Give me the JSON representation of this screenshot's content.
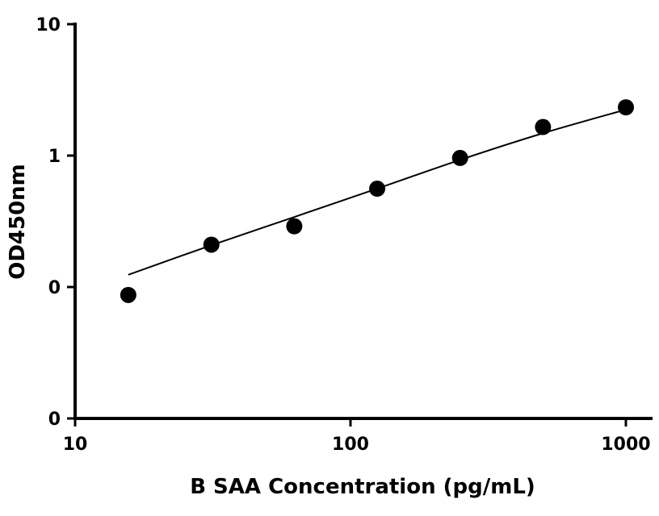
{
  "chart_data": {
    "type": "scatter",
    "title": "",
    "xlabel": "B SAA Concentration (pg/mL)",
    "ylabel": "OD450nm",
    "xscale": "log",
    "yscale": "log",
    "xlim": [
      10,
      1100
    ],
    "ylim": [
      0.01,
      10
    ],
    "x_ticks": [
      10,
      100,
      1000
    ],
    "x_tick_labels": [
      "10",
      "100",
      "1000"
    ],
    "y_ticks": [
      0.01,
      0.1,
      1,
      10
    ],
    "y_tick_labels": [
      "0",
      "0",
      "1",
      "10"
    ],
    "grid": false,
    "legend": "none",
    "marker_color": "#000000",
    "series": [
      {
        "points": [
          {
            "x": 15.6,
            "y": 0.087
          },
          {
            "x": 31.25,
            "y": 0.21
          },
          {
            "x": 62.5,
            "y": 0.29
          },
          {
            "x": 125,
            "y": 0.56
          },
          {
            "x": 250,
            "y": 0.96
          },
          {
            "x": 500,
            "y": 1.65
          },
          {
            "x": 1000,
            "y": 2.33
          }
        ]
      }
    ],
    "fit_curve": {
      "type": "4PL",
      "points": [
        {
          "x": 15.6,
          "y": 0.124
        },
        {
          "x": 31.25,
          "y": 0.208
        },
        {
          "x": 62.5,
          "y": 0.341
        },
        {
          "x": 125,
          "y": 0.561
        },
        {
          "x": 250,
          "y": 0.928
        },
        {
          "x": 500,
          "y": 1.48
        },
        {
          "x": 1000,
          "y": 2.24
        }
      ]
    }
  }
}
